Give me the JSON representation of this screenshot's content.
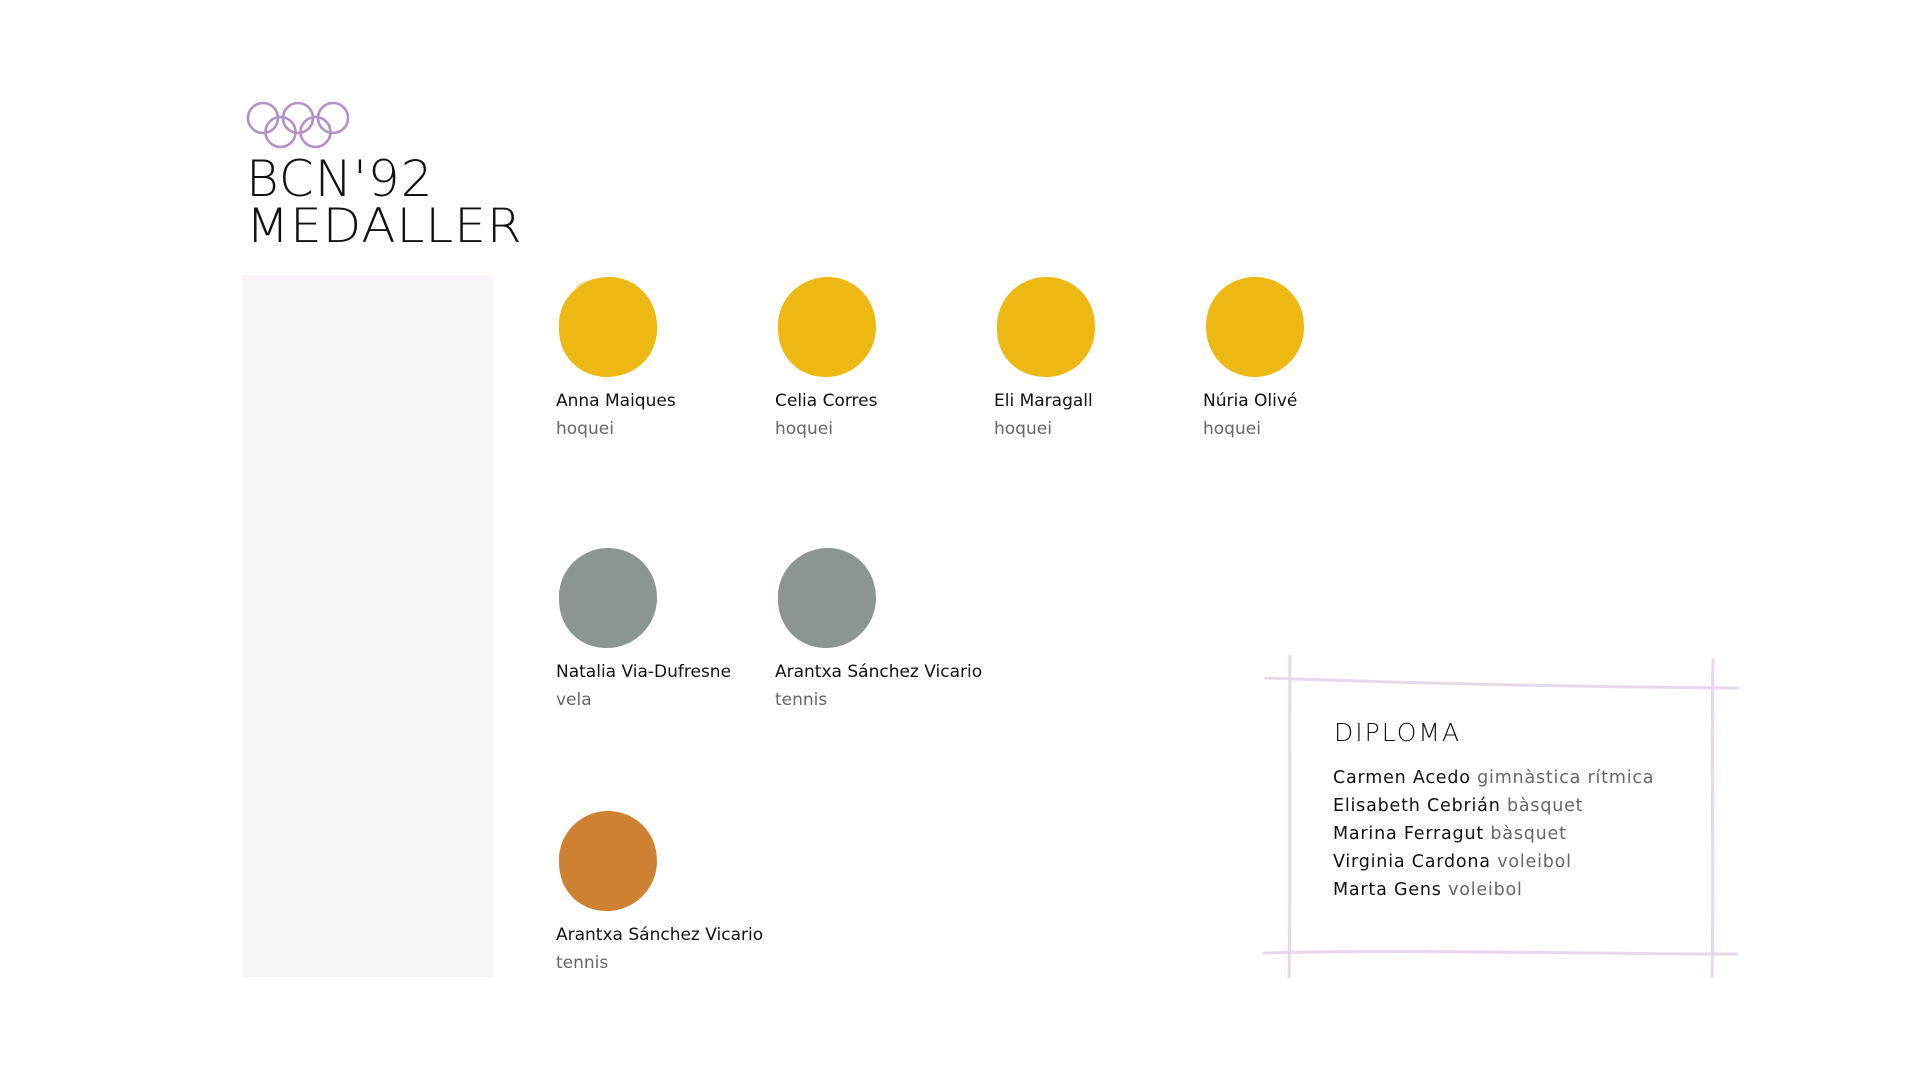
{
  "brand": {
    "logo": "olympic-rings",
    "title": "BCN'92",
    "subtitle": "MEDALLER",
    "ring_color": "#b491c5"
  },
  "colors": {
    "gold": "#eeb813",
    "silver": "#8b9594",
    "bronze": "#cf8132",
    "sidebar": "#f8f3f9",
    "diploma_frame": "#e6d9ea"
  },
  "medals": {
    "gold": [
      {
        "name": "Anna Maiques",
        "sport": "hoquei"
      },
      {
        "name": "Celia Corres",
        "sport": "hoquei"
      },
      {
        "name": "Eli Maragall",
        "sport": "hoquei"
      },
      {
        "name": "Núria Olivé",
        "sport": "hoquei"
      }
    ],
    "silver": [
      {
        "name": "Natalia Via-Dufresne",
        "sport": "vela"
      },
      {
        "name": "Arantxa Sánchez Vicario",
        "sport": "tennis"
      }
    ],
    "bronze": [
      {
        "name": "Arantxa Sánchez Vicario",
        "sport": "tennis"
      }
    ]
  },
  "diploma": {
    "title": "DIPLOMA",
    "entries": [
      {
        "name": "Carmen Acedo",
        "sport": "gimnàstica rítmica"
      },
      {
        "name": "Elisabeth Cebrián",
        "sport": "bàsquet"
      },
      {
        "name": "Marina Ferragut",
        "sport": "bàsquet"
      },
      {
        "name": "Virginia Cardona",
        "sport": "voleibol"
      },
      {
        "name": "Marta Gens",
        "sport": "voleibol"
      }
    ]
  }
}
